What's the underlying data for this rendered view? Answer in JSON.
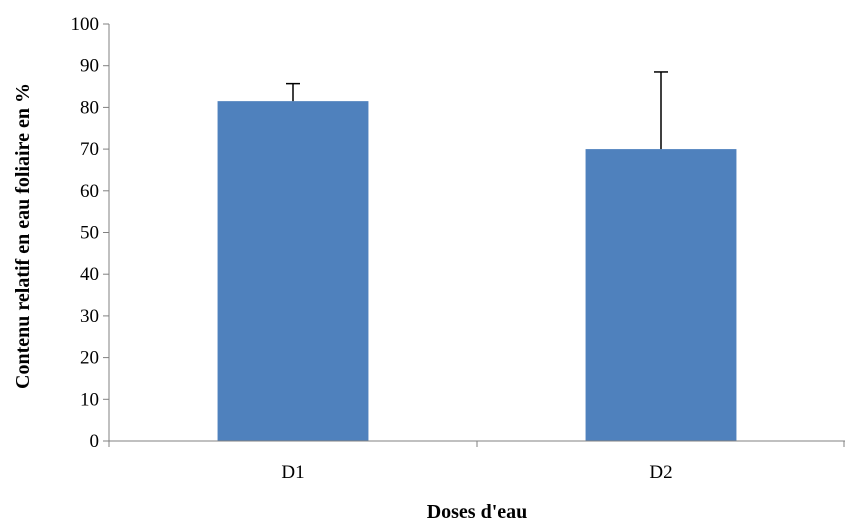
{
  "chart_data": {
    "type": "bar",
    "title": "",
    "xlabel": "Doses d'eau",
    "ylabel": "Contenu relatif en eau foliaire en %",
    "categories": [
      "D1",
      "D2"
    ],
    "values": [
      81.5,
      70
    ],
    "error_bars": [
      4.2,
      18.5
    ],
    "ylim": [
      0,
      100
    ],
    "yticks": [
      "0",
      "10",
      "20",
      "30",
      "40",
      "50",
      "60",
      "70",
      "80",
      "90",
      "100"
    ],
    "grid": false,
    "legend": "none",
    "bar_color": "#4F81BD",
    "axis_color": "#808080",
    "error_bar_color": "#000000"
  }
}
